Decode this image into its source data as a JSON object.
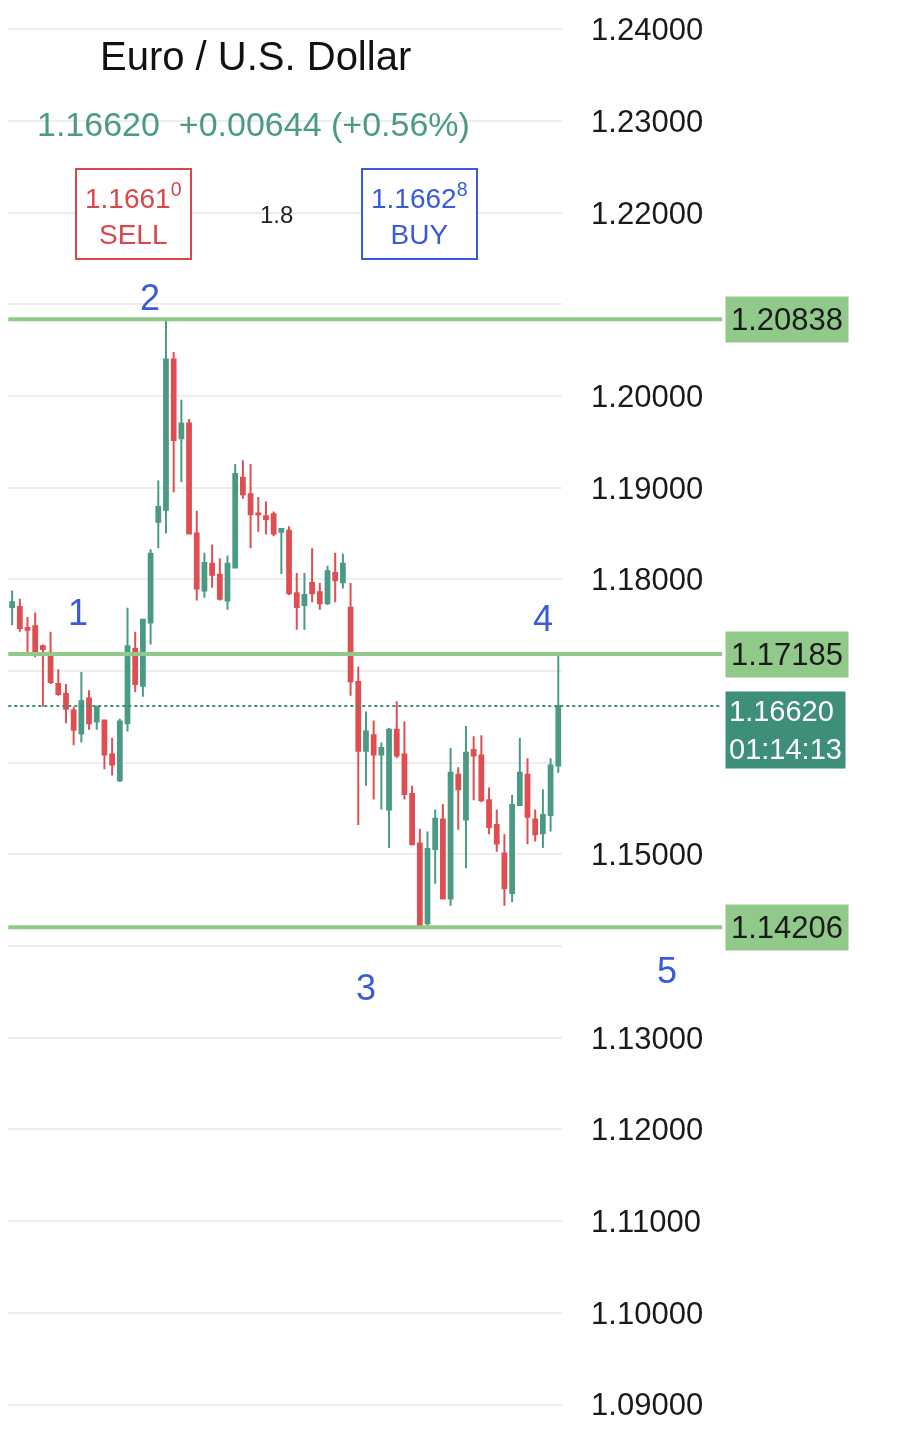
{
  "chart_data": {
    "type": "candlestick",
    "title": "Euro / U.S. Dollar",
    "subtitle": "1.16620  +0.00644 (+0.56%)",
    "categories": [
      null,
      null,
      null,
      null,
      null,
      null,
      null,
      null,
      null,
      null,
      null,
      null,
      null,
      null,
      null,
      null,
      null,
      null,
      null,
      null,
      null,
      null,
      null,
      null,
      null,
      null,
      null,
      null,
      null,
      null,
      null,
      null,
      null,
      null,
      null,
      null,
      null,
      null,
      null,
      null,
      null,
      null,
      null,
      null,
      null,
      null,
      null,
      null,
      null,
      null,
      null,
      null,
      null,
      null,
      null,
      null,
      null,
      null,
      null,
      null,
      null,
      null,
      null,
      null,
      null,
      null,
      null,
      null,
      null,
      null,
      null,
      null
    ],
    "ohlc": [
      [
        1.177,
        1.1788,
        1.175,
        1.1775
      ],
      [
        1.177,
        1.1779,
        1.1743,
        1.1747
      ],
      [
        1.1747,
        1.1759,
        1.172,
        1.1745
      ],
      [
        1.1749,
        1.1764,
        1.1715,
        1.172
      ],
      [
        1.1727,
        1.1729,
        1.1661,
        1.1724
      ],
      [
        1.172,
        1.1743,
        1.1686,
        1.1688
      ],
      [
        1.1686,
        1.1702,
        1.1673,
        1.1675
      ],
      [
        1.1675,
        1.1686,
        1.1643,
        1.1659
      ],
      [
        1.1657,
        1.1661,
        1.1619,
        1.1636
      ],
      [
        1.1632,
        1.1699,
        1.1622,
        1.1667
      ],
      [
        1.167,
        1.1679,
        1.1636,
        1.1643
      ],
      [
        1.1645,
        1.1661,
        1.1636,
        1.1661
      ],
      [
        1.1646,
        1.1646,
        1.1593,
        1.1609
      ],
      [
        1.1609,
        1.1627,
        1.1586,
        1.1598
      ],
      [
        1.1581,
        1.1648,
        1.1579,
        1.1645
      ],
      [
        1.1643,
        1.1769,
        1.1634,
        1.1727
      ],
      [
        1.1724,
        1.1743,
        1.1677,
        1.1686
      ],
      [
        1.1684,
        1.1756,
        1.1672,
        1.1756
      ],
      [
        1.1753,
        1.1833,
        1.1729,
        1.1828
      ],
      [
        1.1863,
        1.1908,
        1.1834,
        1.1879
      ],
      [
        1.1876,
        1.20838,
        1.185,
        1.204
      ],
      [
        1.204,
        1.2048,
        1.1895,
        1.1952
      ],
      [
        1.1954,
        1.1996,
        1.1906,
        1.197
      ],
      [
        1.197,
        1.1975,
        1.185,
        1.185
      ],
      [
        1.185,
        1.1875,
        1.1777,
        1.179
      ],
      [
        1.1788,
        1.1829,
        1.178,
        1.1818
      ],
      [
        1.1817,
        1.1838,
        1.1791,
        1.1805
      ],
      [
        1.1805,
        1.1823,
        1.1777,
        1.1779
      ],
      [
        1.1777,
        1.1826,
        1.1767,
        1.1817
      ],
      [
        1.1813,
        1.1926,
        1.1812,
        1.1915
      ],
      [
        1.1911,
        1.193,
        1.1888,
        1.1893
      ],
      [
        1.1893,
        1.1926,
        1.1834,
        1.1871
      ],
      [
        1.1872,
        1.189,
        1.1852,
        1.1871
      ],
      [
        1.1869,
        1.1885,
        1.1849,
        1.1866
      ],
      [
        1.1871,
        1.1874,
        1.1847,
        1.185
      ],
      [
        1.1852,
        1.1855,
        1.1806,
        1.1855
      ],
      [
        1.1853,
        1.1858,
        1.1783,
        1.1785
      ],
      [
        1.1785,
        1.1807,
        1.1745,
        1.177
      ],
      [
        1.1772,
        1.1807,
        1.1745,
        1.1783
      ],
      [
        1.1796,
        1.1834,
        1.1775,
        1.1785
      ],
      [
        1.1786,
        1.1796,
        1.1767,
        1.1774
      ],
      [
        1.1774,
        1.1815,
        1.1772,
        1.1809
      ],
      [
        1.1807,
        1.1829,
        1.1775,
        1.1799
      ],
      [
        1.1797,
        1.1828,
        1.179,
        1.1817
      ],
      [
        1.1769,
        1.1796,
        1.1673,
        1.1689
      ],
      [
        1.1688,
        1.1705,
        1.1532,
        1.1613
      ],
      [
        1.1613,
        1.1656,
        1.1575,
        1.1634
      ],
      [
        1.163,
        1.1646,
        1.156,
        1.1609
      ],
      [
        1.1609,
        1.1622,
        1.1549,
        1.1616
      ],
      [
        1.1549,
        1.1638,
        1.1507,
        1.1636
      ],
      [
        1.1636,
        1.1667,
        1.1605,
        1.1608
      ],
      [
        1.1609,
        1.1645,
        1.156,
        1.1566
      ],
      [
        1.1566,
        1.1575,
        1.1511,
        1.1511
      ],
      [
        1.1512,
        1.1528,
        1.14206,
        1.1423
      ],
      [
        1.1425,
        1.1525,
        1.1422,
        1.1506
      ],
      [
        1.1506,
        1.1549,
        1.1468,
        1.1539
      ],
      [
        1.1538,
        1.1555,
        1.1452,
        1.1452
      ],
      [
        1.1452,
        1.1616,
        1.1444,
        1.1589
      ],
      [
        1.1587,
        1.1595,
        1.1527,
        1.1571
      ],
      [
        1.1538,
        1.164,
        1.1485,
        1.1611
      ],
      [
        1.1614,
        1.1629,
        1.1559,
        1.1608
      ],
      [
        1.1608,
        1.163,
        1.1557,
        1.1559
      ],
      [
        1.1559,
        1.1573,
        1.1522,
        1.153
      ],
      [
        1.1532,
        1.1549,
        1.1503,
        1.1512
      ],
      [
        1.1501,
        1.1522,
        1.1444,
        1.1463
      ],
      [
        1.1458,
        1.1565,
        1.1448,
        1.1554
      ],
      [
        1.1554,
        1.1627,
        1.1554,
        1.1589
      ],
      [
        1.1587,
        1.1605,
        1.1511,
        1.1541
      ],
      [
        1.1538,
        1.1549,
        1.1514,
        1.1522
      ],
      [
        1.1523,
        1.1571,
        1.1507,
        1.1543
      ],
      [
        1.1543,
        1.1605,
        1.1525,
        1.1597
      ],
      [
        1.1597,
        1.17185,
        1.1589,
        1.1662
      ]
    ],
    "ylim": [
      1.087,
      1.2432
    ],
    "yticks": [
      {
        "value": 1.24,
        "label": "1.24000"
      },
      {
        "value": 1.23,
        "label": "1.23000"
      },
      {
        "value": 1.22,
        "label": "1.22000"
      },
      {
        "value": 1.21,
        "label": null
      },
      {
        "value": 1.2,
        "label": "1.20000"
      },
      {
        "value": 1.19,
        "label": "1.19000"
      },
      {
        "value": 1.18,
        "label": "1.18000"
      },
      {
        "value": 1.17,
        "label": null
      },
      {
        "value": 1.16,
        "label": null
      },
      {
        "value": 1.15,
        "label": "1.15000"
      },
      {
        "value": 1.14,
        "label": null
      },
      {
        "value": 1.13,
        "label": "1.13000"
      },
      {
        "value": 1.12,
        "label": "1.12000"
      },
      {
        "value": 1.11,
        "label": "1.11000"
      },
      {
        "value": 1.1,
        "label": "1.10000"
      },
      {
        "value": 1.09,
        "label": "1.09000"
      }
    ],
    "ref_lines": [
      {
        "axis": "y",
        "value": 1.20838,
        "label": "1.20838",
        "color": "#90c98a",
        "line_style": "solid"
      },
      {
        "axis": "y",
        "value": 1.17185,
        "label": "1.17185",
        "color": "#90c98a",
        "line_style": "solid"
      },
      {
        "axis": "y",
        "value": 1.14206,
        "label": "1.14206",
        "color": "#90c98a",
        "line_style": "solid"
      },
      {
        "axis": "y",
        "value": 1.1662,
        "label": "1.16620\n01:14:13",
        "color": "#3d8f7a",
        "line_style": "dotted"
      }
    ],
    "annotations": [
      "1.1661$^{0}$\nSELL",
      "1.8",
      "1.1662$^{8}$\nBUY",
      "1",
      "2",
      "3",
      "4",
      "5"
    ],
    "grid": "y",
    "legend": false
  }
}
